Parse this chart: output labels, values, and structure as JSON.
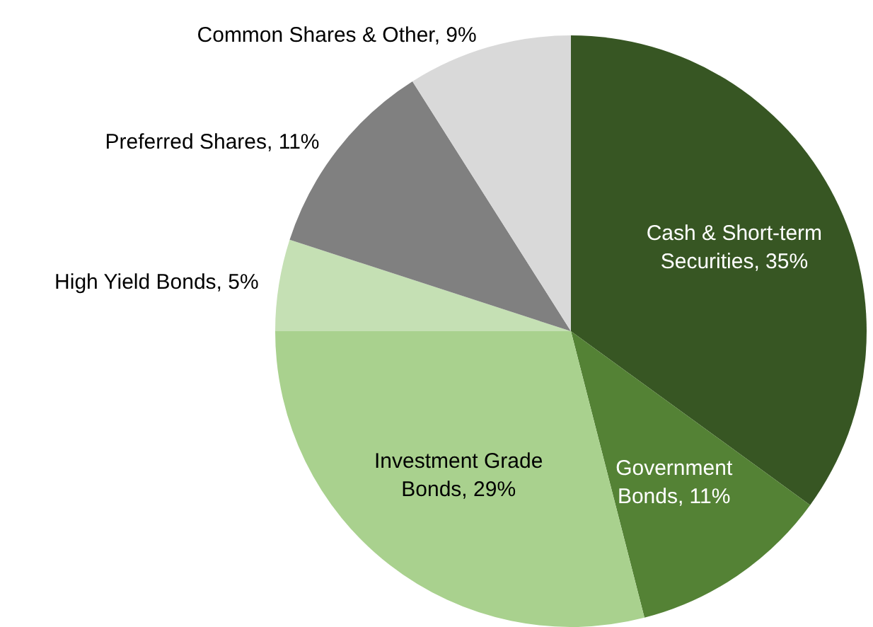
{
  "chart_data": {
    "type": "pie",
    "categories": [
      "Cash & Short-term Securities",
      "Government Bonds",
      "Investment Grade Bonds",
      "High Yield Bonds",
      "Preferred Shares",
      "Common Shares & Other"
    ],
    "values": [
      35,
      11,
      29,
      5,
      11,
      9
    ],
    "value_labels": [
      "35%",
      "11%",
      "29%",
      "5%",
      "11%",
      "9%"
    ],
    "colors": [
      "#375623",
      "#548235",
      "#a9d18e",
      "#c5e0b4",
      "#808080",
      "#d9d9d9"
    ],
    "legend": false
  }
}
